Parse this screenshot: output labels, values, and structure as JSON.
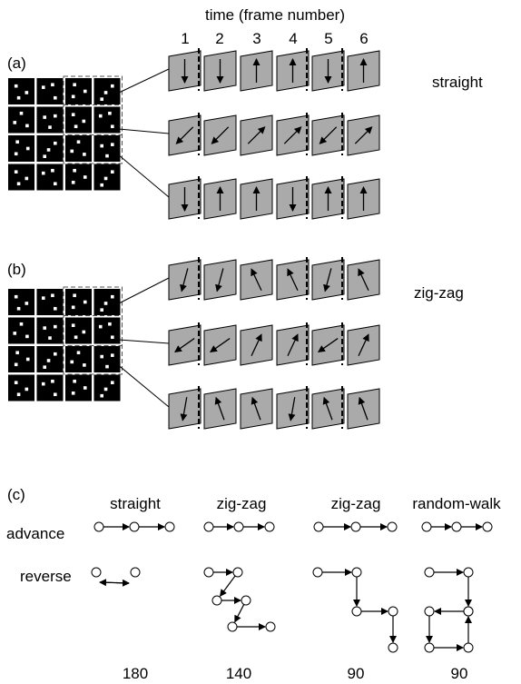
{
  "header": {
    "time_label": "time (frame number)",
    "frame_numbers": [
      "1",
      "2",
      "3",
      "4",
      "5",
      "6"
    ]
  },
  "panel_a": {
    "label": "(a)",
    "condition": "straight",
    "rows": [
      {
        "angles": [
          180,
          180,
          0,
          0,
          180,
          0
        ]
      },
      {
        "angles": [
          225,
          225,
          45,
          45,
          225,
          45
        ]
      },
      {
        "angles": [
          180,
          0,
          0,
          180,
          0,
          0
        ]
      }
    ]
  },
  "panel_b": {
    "label": "(b)",
    "condition": "zig-zag",
    "rows": [
      {
        "angles": [
          195,
          195,
          335,
          335,
          195,
          335
        ]
      },
      {
        "angles": [
          235,
          235,
          25,
          25,
          235,
          25
        ]
      },
      {
        "angles": [
          190,
          340,
          340,
          190,
          340,
          340
        ]
      }
    ]
  },
  "panel_c": {
    "label": "(c)",
    "row_labels": [
      "advance",
      "reverse"
    ],
    "columns": [
      {
        "title": "straight",
        "angle": "180"
      },
      {
        "title": "zig-zag",
        "angle": "140"
      },
      {
        "title": "zig-zag",
        "angle": "90"
      },
      {
        "title": "random-walk",
        "angle": "90"
      }
    ]
  }
}
